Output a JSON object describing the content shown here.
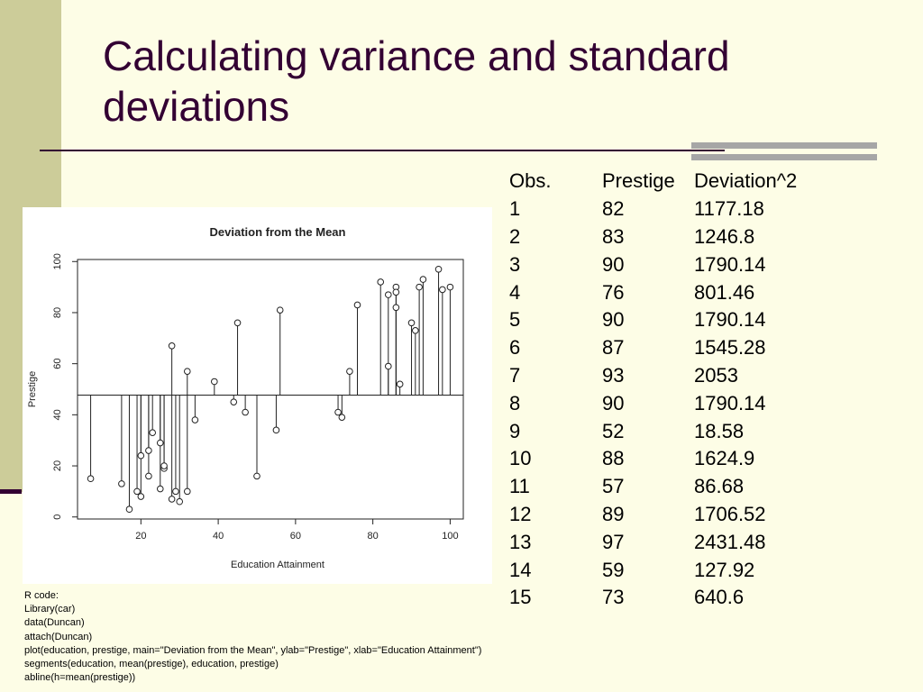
{
  "slide": {
    "title": "Calculating variance and standard deviations"
  },
  "table": {
    "headers": [
      "Obs.",
      "Prestige",
      "Deviation^2"
    ],
    "rows": [
      [
        "1",
        "82",
        "1177.18"
      ],
      [
        "2",
        "83",
        "1246.8"
      ],
      [
        "3",
        "90",
        "1790.14"
      ],
      [
        "4",
        "76",
        "801.46"
      ],
      [
        "5",
        "90",
        "1790.14"
      ],
      [
        "6",
        "87",
        "1545.28"
      ],
      [
        "7",
        "93",
        "2053"
      ],
      [
        "8",
        "90",
        "1790.14"
      ],
      [
        "9",
        "52",
        "18.58"
      ],
      [
        "10",
        "88",
        "1624.9"
      ],
      [
        "11",
        "57",
        "86.68"
      ],
      [
        "12",
        "89",
        "1706.52"
      ],
      [
        "13",
        "97",
        "2431.48"
      ],
      [
        "14",
        "59",
        "127.92"
      ],
      [
        "15",
        "73",
        "640.6"
      ]
    ]
  },
  "code": {
    "lines": [
      "R code:",
      "Library(car)",
      "data(Duncan)",
      "attach(Duncan)",
      "plot(education, prestige, main=\"Deviation from the Mean\", ylab=\"Prestige\", xlab=\"Education Attainment\")",
      "segments(education, mean(prestige), education, prestige)",
      "abline(h=mean(prestige))"
    ]
  },
  "colors": {
    "background": "#fdfde6",
    "left_band": "#cccc99",
    "title": "#330033",
    "rule_bars": "#a6a6a6"
  },
  "chart_data": {
    "type": "scatter",
    "title": "Deviation from the Mean",
    "xlabel": "Education Attainment",
    "ylabel": "Prestige",
    "xlim": [
      3.6,
      103.4
    ],
    "ylim": [
      -0.8,
      100.8
    ],
    "xticks": [
      20,
      40,
      60,
      80,
      100
    ],
    "yticks": [
      0,
      20,
      40,
      60,
      80,
      100
    ],
    "mean_line": 47.7,
    "grid": false,
    "points": [
      [
        7,
        15
      ],
      [
        15,
        13
      ],
      [
        17,
        3
      ],
      [
        19,
        10
      ],
      [
        20,
        24
      ],
      [
        20,
        8
      ],
      [
        22,
        16
      ],
      [
        22,
        26
      ],
      [
        23,
        33
      ],
      [
        25,
        29
      ],
      [
        25,
        11
      ],
      [
        26,
        19
      ],
      [
        26,
        20
      ],
      [
        28,
        7
      ],
      [
        28,
        67
      ],
      [
        29,
        10
      ],
      [
        30,
        6
      ],
      [
        32,
        57
      ],
      [
        32,
        10
      ],
      [
        34,
        38
      ],
      [
        39,
        53
      ],
      [
        44,
        45
      ],
      [
        45,
        76
      ],
      [
        47,
        41
      ],
      [
        50,
        16
      ],
      [
        55,
        34
      ],
      [
        56,
        81
      ],
      [
        71,
        41
      ],
      [
        72,
        39
      ],
      [
        74,
        57
      ],
      [
        76,
        83
      ],
      [
        82,
        92
      ],
      [
        84,
        87
      ],
      [
        84,
        59
      ],
      [
        86,
        90
      ],
      [
        86,
        82
      ],
      [
        86,
        88
      ],
      [
        87,
        52
      ],
      [
        90,
        76
      ],
      [
        91,
        73
      ],
      [
        92,
        90
      ],
      [
        93,
        93
      ],
      [
        97,
        97
      ],
      [
        98,
        89
      ],
      [
        100,
        90
      ]
    ]
  }
}
